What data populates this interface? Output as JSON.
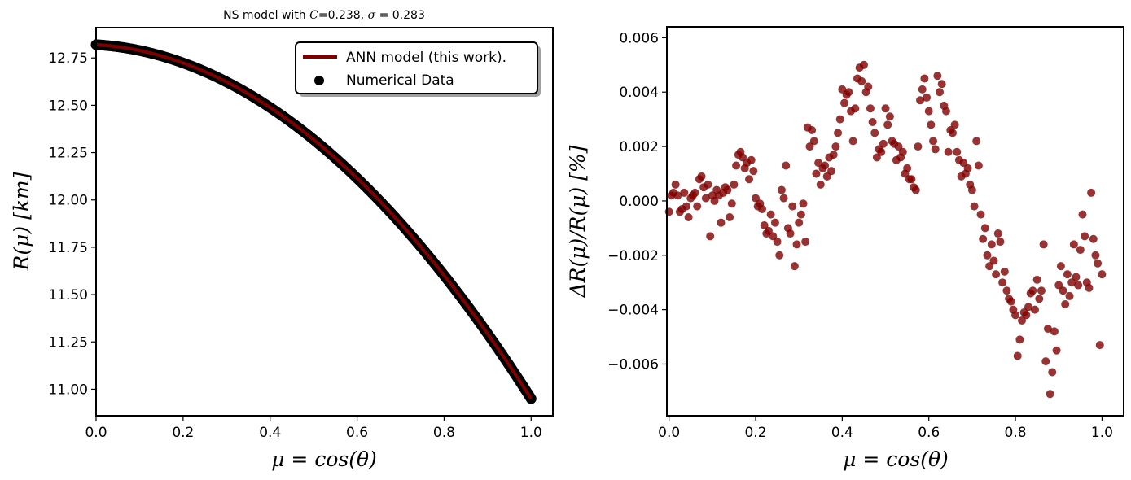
{
  "chart_data": [
    {
      "type": "scatter",
      "title_prefix": "NS model with ",
      "title_c_symbol": "C",
      "title_c_value": "=0.238, ",
      "title_sigma_symbol": "σ",
      "title_sigma_value": " = 0.283",
      "xlabel": "μ = cos(θ)",
      "ylabel": "R(μ) [km]",
      "xlim": [
        0.0,
        1.05
      ],
      "ylim": [
        10.86,
        12.91
      ],
      "xticks": [
        0.0,
        0.2,
        0.4,
        0.6,
        0.8,
        1.0
      ],
      "xtick_labels": [
        "0.0",
        "0.2",
        "0.4",
        "0.6",
        "0.8",
        "1.0"
      ],
      "yticks": [
        11.0,
        11.25,
        11.5,
        11.75,
        12.0,
        12.25,
        12.5,
        12.75
      ],
      "ytick_labels": [
        "11.00",
        "11.25",
        "11.50",
        "11.75",
        "12.00",
        "12.25",
        "12.50",
        "12.75"
      ],
      "legend": {
        "placement": "top-right",
        "entries": [
          {
            "label": "ANN model (this work).",
            "kind": "line",
            "color": "#800000"
          },
          {
            "label": "Numerical Data",
            "kind": "marker",
            "color": "#000000"
          }
        ]
      },
      "model": {
        "r0": 12.82,
        "a": 0.135,
        "b": 1.735,
        "description_formula": "R = r0 - a*mu - b*mu^2"
      },
      "series_colors": {
        "line": "#800000",
        "points": "#000000"
      },
      "x_samples": {
        "start": 0.0,
        "end": 1.0,
        "count": 400
      }
    },
    {
      "type": "scatter",
      "title": "",
      "xlabel": "μ = cos(θ)",
      "ylabel": "ΔR(μ)/R(μ) [%]",
      "xlim": [
        -0.005,
        1.05
      ],
      "ylim": [
        -0.0079,
        0.0064
      ],
      "xticks": [
        0.0,
        0.2,
        0.4,
        0.6,
        0.8,
        1.0
      ],
      "xtick_labels": [
        "0.0",
        "0.2",
        "0.4",
        "0.6",
        "0.8",
        "1.0"
      ],
      "yticks": [
        -0.006,
        -0.004,
        -0.002,
        0.0,
        0.002,
        0.004,
        0.006
      ],
      "ytick_labels": [
        "−0.006",
        "−0.004",
        "−0.002",
        "0.000",
        "0.002",
        "0.004",
        "0.006"
      ],
      "point_color": "#800000",
      "x": [
        0.0,
        0.01,
        0.02,
        0.03,
        0.04,
        0.05,
        0.06,
        0.07,
        0.08,
        0.09,
        0.1,
        0.11,
        0.12,
        0.13,
        0.14,
        0.15,
        0.16,
        0.17,
        0.18,
        0.19,
        0.2,
        0.21,
        0.22,
        0.23,
        0.24,
        0.25,
        0.26,
        0.27,
        0.28,
        0.29,
        0.3,
        0.31,
        0.32,
        0.33,
        0.34,
        0.35,
        0.36,
        0.37,
        0.38,
        0.39,
        0.4,
        0.41,
        0.42,
        0.43,
        0.44,
        0.45,
        0.46,
        0.47,
        0.48,
        0.49,
        0.5,
        0.51,
        0.52,
        0.53,
        0.54,
        0.55,
        0.56,
        0.57,
        0.58,
        0.59,
        0.6,
        0.61,
        0.62,
        0.63,
        0.64,
        0.65,
        0.66,
        0.67,
        0.68,
        0.69,
        0.7,
        0.71,
        0.72,
        0.73,
        0.74,
        0.75,
        0.76,
        0.77,
        0.78,
        0.79,
        0.8,
        0.81,
        0.82,
        0.83,
        0.84,
        0.85,
        0.86,
        0.87,
        0.88,
        0.89,
        0.9,
        0.91,
        0.92,
        0.93,
        0.94,
        0.95,
        0.96,
        0.97,
        0.98,
        0.99,
        1.0,
        0.005,
        0.015,
        0.025,
        0.035,
        0.045,
        0.055,
        0.065,
        0.075,
        0.085,
        0.095,
        0.105,
        0.115,
        0.125,
        0.135,
        0.145,
        0.155,
        0.165,
        0.175,
        0.185,
        0.195,
        0.205,
        0.215,
        0.225,
        0.235,
        0.245,
        0.255,
        0.265,
        0.275,
        0.285,
        0.295,
        0.305,
        0.315,
        0.325,
        0.335,
        0.345,
        0.355,
        0.365,
        0.375,
        0.385,
        0.395,
        0.405,
        0.415,
        0.425,
        0.435,
        0.445,
        0.455,
        0.465,
        0.475,
        0.485,
        0.495,
        0.505,
        0.515,
        0.525,
        0.535,
        0.545,
        0.555,
        0.565,
        0.575,
        0.585,
        0.595,
        0.605,
        0.615,
        0.625,
        0.635,
        0.645,
        0.655,
        0.665,
        0.675,
        0.685,
        0.695,
        0.705,
        0.715,
        0.725,
        0.735,
        0.745,
        0.755,
        0.765,
        0.775,
        0.785,
        0.795,
        0.805,
        0.815,
        0.825,
        0.835,
        0.845,
        0.855,
        0.865,
        0.875,
        0.885,
        0.895,
        0.905,
        0.915,
        0.925,
        0.935,
        0.945,
        0.955,
        0.965,
        0.975,
        0.985,
        0.995
      ],
      "y": [
        -0.0004,
        0.0003,
        0.0002,
        -0.0003,
        -0.0002,
        0.0001,
        0.0003,
        0.0008,
        0.0005,
        0.0006,
        0.0002,
        0.0004,
        -0.0008,
        0.0005,
        -0.0006,
        0.0006,
        0.0017,
        0.0016,
        0.0014,
        0.0015,
        0.0001,
        -0.0001,
        -0.0009,
        -0.0011,
        -0.0013,
        -0.0015,
        0.0004,
        0.0013,
        -0.0012,
        -0.0024,
        -0.0008,
        -0.0001,
        0.0027,
        0.0026,
        0.001,
        0.0006,
        0.0013,
        0.0016,
        0.0017,
        0.0025,
        0.0041,
        0.0039,
        0.0033,
        0.0034,
        0.0049,
        0.005,
        0.0042,
        0.0029,
        0.0016,
        0.0018,
        0.0034,
        0.0031,
        0.0021,
        0.002,
        0.0018,
        0.0012,
        0.0008,
        0.0004,
        0.0037,
        0.0045,
        0.0033,
        0.0022,
        0.0046,
        0.0043,
        0.0033,
        0.0026,
        0.0028,
        0.0015,
        0.0014,
        0.0012,
        0.0004,
        0.0022,
        -0.0005,
        -0.001,
        -0.0024,
        -0.0022,
        -0.0012,
        -0.003,
        -0.0033,
        -0.0037,
        -0.0042,
        -0.0051,
        -0.0041,
        -0.0039,
        -0.0033,
        -0.0029,
        -0.0033,
        -0.0059,
        -0.0071,
        -0.0048,
        -0.0031,
        -0.0033,
        -0.0027,
        -0.003,
        -0.0028,
        -0.0018,
        -0.0013,
        -0.0032,
        -0.0014,
        -0.0023,
        -0.0027,
        0.0002,
        0.0006,
        -0.0004,
        0.0003,
        -0.0006,
        0.0002,
        -0.0002,
        0.0009,
        0.0001,
        -0.0013,
        0.0,
        0.0002,
        0.0003,
        0.0004,
        -0.0001,
        0.0013,
        0.0018,
        0.0012,
        0.0008,
        0.0011,
        -0.0002,
        -0.0003,
        -0.0012,
        -0.0005,
        -0.0008,
        -0.002,
        0.0001,
        -0.001,
        -0.0002,
        -0.0016,
        -0.0005,
        -0.0015,
        0.002,
        0.0022,
        0.0014,
        0.0012,
        0.0009,
        0.0011,
        0.002,
        0.003,
        0.0036,
        0.004,
        0.0022,
        0.0045,
        0.0044,
        0.004,
        0.0034,
        0.0025,
        0.0019,
        0.0021,
        0.0028,
        0.0022,
        0.0015,
        0.0016,
        0.001,
        0.0008,
        0.0005,
        0.002,
        0.0041,
        0.0038,
        0.0028,
        0.0019,
        0.004,
        0.0035,
        0.0018,
        0.0025,
        0.0018,
        0.0009,
        0.001,
        0.0006,
        -0.0002,
        0.0013,
        -0.0014,
        -0.002,
        -0.0016,
        -0.0027,
        -0.0015,
        -0.0026,
        -0.0036,
        -0.004,
        -0.0057,
        -0.0044,
        -0.0042,
        -0.0034,
        -0.004,
        -0.0036,
        -0.0016,
        -0.0047,
        -0.0063,
        -0.0055,
        -0.0024,
        -0.0038,
        -0.0035,
        -0.0016,
        -0.0031,
        -0.0005,
        -0.003,
        0.0003,
        -0.002,
        -0.0053
      ]
    }
  ]
}
